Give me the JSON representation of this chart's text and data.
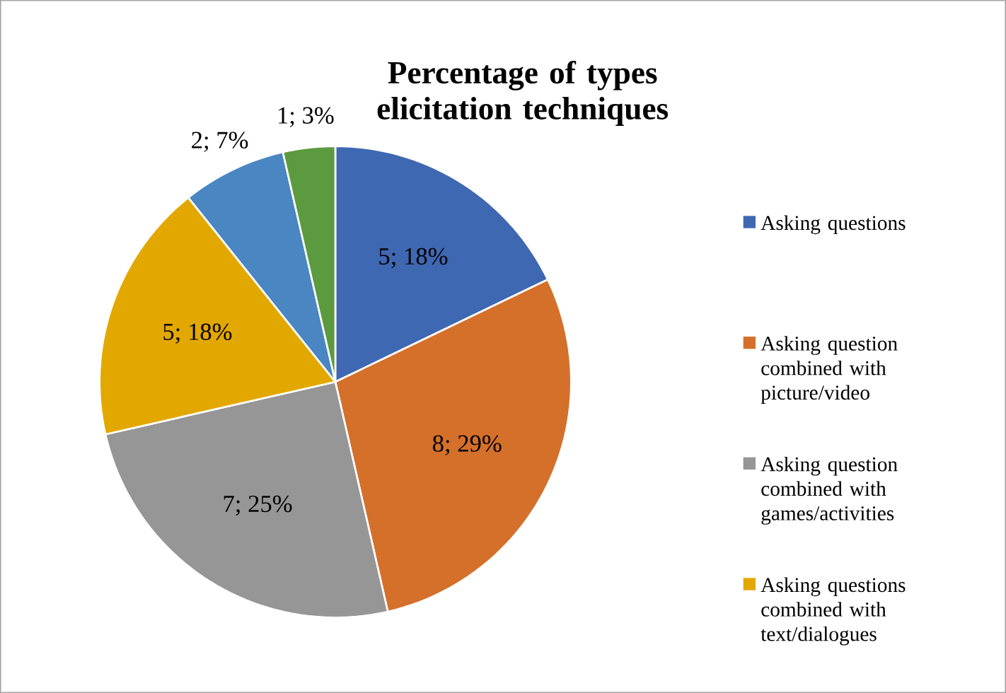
{
  "chart_data": {
    "type": "pie",
    "title": "Percentage of types elicitation techniques",
    "categories": [
      "Asking questions",
      "Asking question combined with picture/video",
      "Asking question combined with games/activities",
      "Asking questions combined with text/dialogues",
      null,
      null
    ],
    "values": [
      5,
      8,
      7,
      5,
      2,
      1
    ],
    "value_labels": [
      "5; 18%",
      "8; 29%",
      "7; 25%",
      "5; 18%",
      "2; 7%",
      "1; 3%"
    ],
    "colors": [
      "#3f68b3",
      "#d4702a",
      "#969696",
      "#e3a800",
      "#4a86c2",
      "#5c9a3f"
    ],
    "legend": "right"
  }
}
